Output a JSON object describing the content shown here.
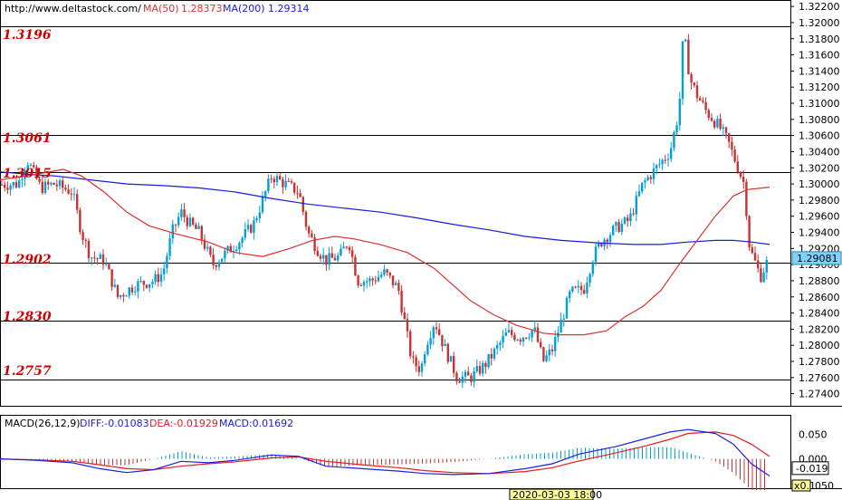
{
  "header": {
    "url": "http://www.deltastock.com/",
    "ma50_label": "MA(50)",
    "ma50_value": "1.28373",
    "ma200_label": "MA(200)",
    "ma200_value": "1.29314"
  },
  "colors": {
    "up": "#00a0d8",
    "down": "#c83232",
    "ma50": "#e03030",
    "ma200": "#1a1ae0",
    "level": "#d00000",
    "diff": "#2020e0",
    "dea": "#e02020",
    "price_tag": "#7fd4ff"
  },
  "chart_data": [
    {
      "type": "candlestick",
      "title": "",
      "ylim": [
        1.2725,
        1.3228
      ],
      "y_ticks": [
        "1.32200",
        "1.32000",
        "1.31800",
        "1.31600",
        "1.31400",
        "1.31200",
        "1.31000",
        "1.30800",
        "1.30600",
        "1.30400",
        "1.30200",
        "1.30000",
        "1.29800",
        "1.29600",
        "1.29400",
        "1.29200",
        "1.29000",
        "1.28800",
        "1.28600",
        "1.28400",
        "1.28200",
        "1.28000",
        "1.27800",
        "1.27600",
        "1.27400"
      ],
      "x_label_visible": "2020-03-03 18:00",
      "current_price": "1.29081",
      "support_resistance_levels": [
        "1.3196",
        "1.3061",
        "1.3015",
        "1.2902",
        "1.2830",
        "1.2757"
      ],
      "close_path": [
        [
          0,
          1.2999
        ],
        [
          20,
          1.3
        ],
        [
          30,
          1.303
        ],
        [
          45,
          1.2995
        ],
        [
          60,
          1.3
        ],
        [
          80,
          1.299
        ],
        [
          90,
          1.294
        ],
        [
          100,
          1.291
        ],
        [
          115,
          1.2905
        ],
        [
          130,
          1.286
        ],
        [
          150,
          1.2875
        ],
        [
          170,
          1.288
        ],
        [
          180,
          1.289
        ],
        [
          190,
          1.294
        ],
        [
          200,
          1.2965
        ],
        [
          210,
          1.295
        ],
        [
          220,
          1.294
        ],
        [
          235,
          1.29
        ],
        [
          250,
          1.2915
        ],
        [
          265,
          1.293
        ],
        [
          280,
          1.295
        ],
        [
          290,
          1.298
        ],
        [
          300,
          1.301
        ],
        [
          315,
          1.3
        ],
        [
          330,
          1.299
        ],
        [
          340,
          1.294
        ],
        [
          350,
          1.292
        ],
        [
          360,
          1.2905
        ],
        [
          375,
          1.291
        ],
        [
          385,
          1.293
        ],
        [
          395,
          1.288
        ],
        [
          410,
          1.288
        ],
        [
          425,
          1.289
        ],
        [
          440,
          1.287
        ],
        [
          455,
          1.278
        ],
        [
          465,
          1.277
        ],
        [
          470,
          1.28
        ],
        [
          480,
          1.283
        ],
        [
          490,
          1.28
        ],
        [
          505,
          1.276
        ],
        [
          520,
          1.276
        ],
        [
          535,
          1.2775
        ],
        [
          545,
          1.279
        ],
        [
          560,
          1.2815
        ],
        [
          575,
          1.281
        ],
        [
          590,
          1.282
        ],
        [
          600,
          1.278
        ],
        [
          610,
          1.2795
        ],
        [
          620,
          1.283
        ],
        [
          630,
          1.2865
        ],
        [
          645,
          1.287
        ],
        [
          655,
          1.291
        ],
        [
          665,
          1.293
        ],
        [
          680,
          1.2945
        ],
        [
          695,
          1.2955
        ],
        [
          710,
          1.3
        ],
        [
          725,
          1.302
        ],
        [
          740,
          1.304
        ],
        [
          750,
          1.309
        ],
        [
          755,
          1.319
        ],
        [
          762,
          1.313
        ],
        [
          770,
          1.311
        ],
        [
          780,
          1.309
        ],
        [
          795,
          1.307
        ],
        [
          805,
          1.305
        ],
        [
          815,
          1.302
        ],
        [
          822,
          1.3
        ],
        [
          828,
          1.292
        ],
        [
          835,
          1.29
        ],
        [
          840,
          1.2885
        ],
        [
          848,
          1.2905
        ]
      ],
      "ma50_path": [
        [
          0,
          1.3005
        ],
        [
          40,
          1.3012
        ],
        [
          70,
          1.3018
        ],
        [
          90,
          1.301
        ],
        [
          115,
          1.299
        ],
        [
          140,
          1.2965
        ],
        [
          165,
          1.2948
        ],
        [
          195,
          1.2938
        ],
        [
          230,
          1.2928
        ],
        [
          260,
          1.2915
        ],
        [
          290,
          1.291
        ],
        [
          320,
          1.292
        ],
        [
          345,
          1.293
        ],
        [
          370,
          1.2935
        ],
        [
          390,
          1.2932
        ],
        [
          420,
          1.2925
        ],
        [
          450,
          1.2915
        ],
        [
          480,
          1.2895
        ],
        [
          500,
          1.2875
        ],
        [
          520,
          1.2855
        ],
        [
          545,
          1.2838
        ],
        [
          570,
          1.2825
        ],
        [
          600,
          1.2815
        ],
        [
          620,
          1.2813
        ],
        [
          645,
          1.2813
        ],
        [
          670,
          1.2818
        ],
        [
          690,
          1.2835
        ],
        [
          710,
          1.2848
        ],
        [
          730,
          1.2868
        ],
        [
          750,
          1.29
        ],
        [
          770,
          1.293
        ],
        [
          790,
          1.296
        ],
        [
          810,
          1.2985
        ],
        [
          825,
          1.2993
        ],
        [
          850,
          1.2996
        ]
      ],
      "ma200_path": [
        [
          0,
          1.3015
        ],
        [
          30,
          1.3012
        ],
        [
          60,
          1.301
        ],
        [
          100,
          1.3005
        ],
        [
          140,
          1.3
        ],
        [
          180,
          1.2998
        ],
        [
          220,
          1.2995
        ],
        [
          260,
          1.299
        ],
        [
          300,
          1.2982
        ],
        [
          340,
          1.2975
        ],
        [
          380,
          1.297
        ],
        [
          420,
          1.2965
        ],
        [
          460,
          1.2958
        ],
        [
          500,
          1.295
        ],
        [
          540,
          1.2943
        ],
        [
          580,
          1.2935
        ],
        [
          620,
          1.293
        ],
        [
          660,
          1.2927
        ],
        [
          700,
          1.2925
        ],
        [
          730,
          1.2925
        ],
        [
          760,
          1.2928
        ],
        [
          790,
          1.293
        ],
        [
          810,
          1.293
        ],
        [
          830,
          1.2928
        ],
        [
          850,
          1.2925
        ]
      ]
    },
    {
      "type": "macd",
      "title": "MACD(26,12,9)",
      "diff_label": "DIFF:-0.01083",
      "dea_label": "DEA:-0.01929",
      "macd_label": "MACD:0.01692",
      "ylim": [
        -0.06,
        0.09
      ],
      "y_ticks": [
        "0.050",
        "0.000",
        "-0.019",
        "x0.1",
        "050"
      ],
      "diff_path": [
        [
          0,
          0.0
        ],
        [
          40,
          -0.003
        ],
        [
          80,
          -0.008
        ],
        [
          110,
          -0.02
        ],
        [
          140,
          -0.028
        ],
        [
          170,
          -0.022
        ],
        [
          200,
          -0.005
        ],
        [
          230,
          -0.008
        ],
        [
          260,
          -0.003
        ],
        [
          300,
          0.008
        ],
        [
          330,
          0.005
        ],
        [
          360,
          -0.015
        ],
        [
          400,
          -0.02
        ],
        [
          440,
          -0.025
        ],
        [
          470,
          -0.03
        ],
        [
          500,
          -0.032
        ],
        [
          540,
          -0.03
        ],
        [
          580,
          -0.02
        ],
        [
          610,
          -0.01
        ],
        [
          640,
          0.01
        ],
        [
          680,
          0.025
        ],
        [
          710,
          0.04
        ],
        [
          740,
          0.055
        ],
        [
          760,
          0.06
        ],
        [
          790,
          0.052
        ],
        [
          810,
          0.03
        ],
        [
          830,
          -0.01
        ],
        [
          850,
          -0.035
        ]
      ],
      "dea_path": [
        [
          0,
          0.0
        ],
        [
          40,
          -0.002
        ],
        [
          80,
          -0.005
        ],
        [
          110,
          -0.012
        ],
        [
          140,
          -0.02
        ],
        [
          170,
          -0.022
        ],
        [
          200,
          -0.015
        ],
        [
          230,
          -0.01
        ],
        [
          260,
          -0.006
        ],
        [
          300,
          0.002
        ],
        [
          330,
          0.004
        ],
        [
          360,
          -0.005
        ],
        [
          400,
          -0.012
        ],
        [
          440,
          -0.018
        ],
        [
          470,
          -0.024
        ],
        [
          500,
          -0.028
        ],
        [
          540,
          -0.03
        ],
        [
          580,
          -0.026
        ],
        [
          610,
          -0.018
        ],
        [
          640,
          -0.004
        ],
        [
          680,
          0.012
        ],
        [
          710,
          0.025
        ],
        [
          740,
          0.04
        ],
        [
          760,
          0.052
        ],
        [
          790,
          0.055
        ],
        [
          810,
          0.048
        ],
        [
          830,
          0.03
        ],
        [
          850,
          0.005
        ]
      ]
    }
  ]
}
